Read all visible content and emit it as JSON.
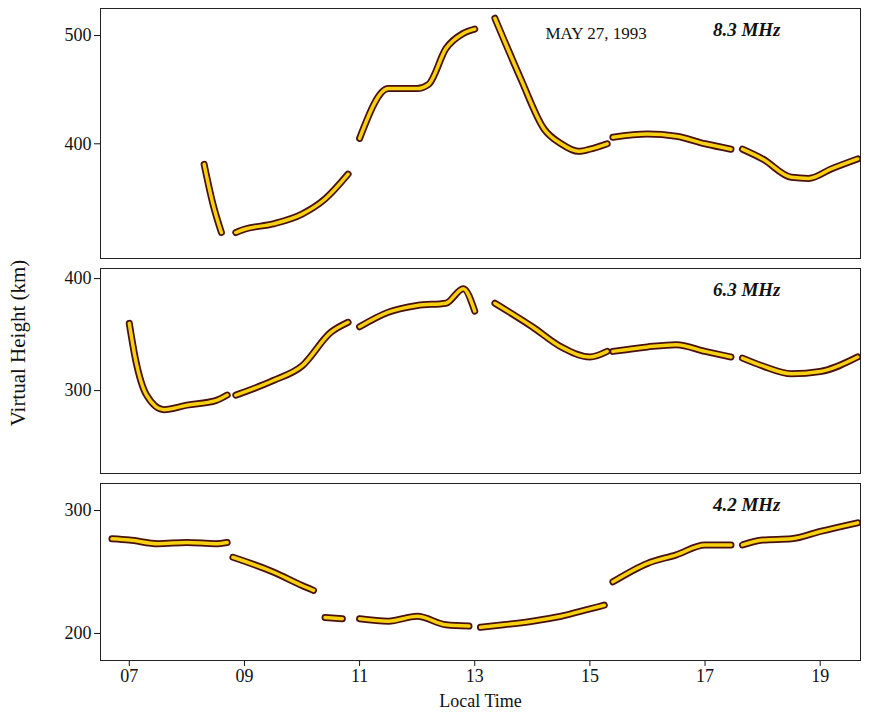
{
  "chart_data": [
    {
      "type": "line",
      "title": "MAY 27, 1993",
      "x": [
        8.3,
        8.45,
        8.6,
        8.7,
        8.85,
        9.0,
        9.5,
        10.0,
        10.4,
        10.8,
        10.9,
        11.0,
        11.5,
        12.0,
        12.2,
        12.5,
        12.8,
        13.0,
        13.15,
        13.35,
        13.8,
        14.2,
        14.5,
        14.8,
        15.0,
        15.3,
        15.35,
        15.4,
        16.0,
        16.5,
        17.0,
        17.45,
        17.55,
        17.65,
        18.0,
        18.5,
        18.8,
        19.2,
        19.65
      ],
      "series": [
        {
          "name": "8.3 MHz",
          "color": "#f5d10f",
          "values": [
            381,
            345,
            318,
            null,
            318,
            321,
            326,
            335,
            349,
            372,
            null,
            405,
            451,
            451,
            455,
            488,
            502,
            506,
            null,
            516,
            460,
            414,
            400,
            393,
            395,
            400,
            null,
            406,
            409,
            407,
            400,
            395,
            null,
            395,
            386,
            369,
            368,
            377,
            386
          ]
        }
      ],
      "xlim": [
        6.5,
        19.7
      ],
      "ylim": [
        294,
        525
      ],
      "yticks": [
        400,
        500
      ],
      "tick_labels": "y"
    },
    {
      "type": "line",
      "ylabel": "Virtual Height (km)",
      "x": [
        7.0,
        7.1,
        7.3,
        7.6,
        8.0,
        8.5,
        8.7,
        8.75,
        8.85,
        9.5,
        10.0,
        10.5,
        10.8,
        10.9,
        11.0,
        11.5,
        12.0,
        12.5,
        12.8,
        13.0,
        13.15,
        13.35,
        14.0,
        14.5,
        15.0,
        15.3,
        15.35,
        15.4,
        16.0,
        16.5,
        17.0,
        17.45,
        17.55,
        17.65,
        18.0,
        18.5,
        19.0,
        19.65
      ],
      "series": [
        {
          "name": "6.3 MHz",
          "color": "#f5d10f",
          "values": [
            360,
            330,
            296,
            283,
            287,
            291,
            296,
            null,
            296,
            309,
            322,
            352,
            361,
            null,
            357,
            370,
            376,
            378,
            391,
            371,
            null,
            378,
            357,
            339,
            330,
            335,
            null,
            335,
            339,
            341,
            335,
            330,
            null,
            329,
            322,
            315,
            317,
            330
          ]
        }
      ],
      "xlim": [
        6.5,
        19.7
      ],
      "ylim": [
        226,
        409
      ],
      "yticks": [
        300,
        400
      ],
      "tick_labels": "y"
    },
    {
      "type": "line",
      "xlabel": "Local Time",
      "x": [
        6.7,
        7.0,
        7.5,
        8.0,
        8.5,
        8.7,
        8.75,
        8.8,
        9.5,
        10.0,
        10.2,
        10.3,
        10.4,
        10.7,
        10.8,
        11.0,
        11.5,
        12.0,
        12.5,
        12.9,
        13.0,
        13.1,
        13.5,
        14.0,
        14.5,
        15.0,
        15.25,
        15.3,
        15.4,
        16.0,
        16.5,
        17.0,
        17.45,
        17.55,
        17.65,
        18.0,
        18.5,
        19.0,
        19.65
      ],
      "series": [
        {
          "name": "4.2 MHz",
          "color": "#f5d10f",
          "values": [
            277,
            276,
            273,
            274,
            273,
            274,
            null,
            262,
            250,
            239,
            235,
            null,
            213,
            212,
            null,
            212,
            210,
            214,
            207,
            206,
            null,
            205,
            207,
            210,
            214,
            220,
            223,
            null,
            242,
            257,
            264,
            272,
            272,
            null,
            272,
            276,
            277,
            283,
            290
          ]
        }
      ],
      "xlim": [
        6.5,
        19.7
      ],
      "ylim": [
        178,
        322
      ],
      "yticks": [
        200,
        300
      ],
      "xticks": [
        {
          "value": 7,
          "label": "07"
        },
        {
          "value": 9,
          "label": "09"
        },
        {
          "value": 11,
          "label": "11"
        },
        {
          "value": 13,
          "label": "13"
        },
        {
          "value": 15,
          "label": "15"
        },
        {
          "value": 17,
          "label": "17"
        },
        {
          "value": 19,
          "label": "19"
        }
      ]
    }
  ]
}
